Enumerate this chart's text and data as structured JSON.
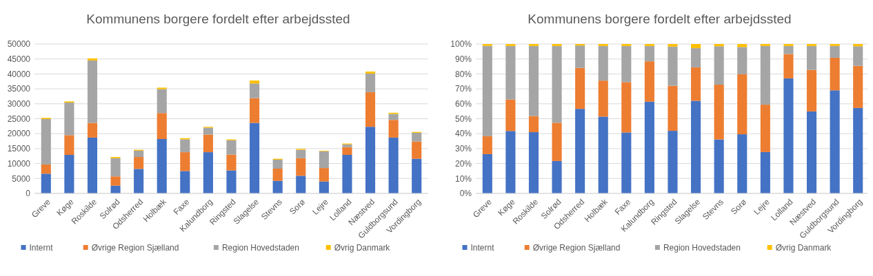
{
  "chart_data": [
    {
      "type": "bar",
      "stacked": true,
      "title": "Kommunens borgere fordelt efter arbejdssted",
      "categories": [
        "Greve",
        "Køge",
        "Roskilde",
        "Solrød",
        "Odsherred",
        "Holbæk",
        "Faxe",
        "Kalundborg",
        "Ringsted",
        "Slagelse",
        "Stevns",
        "Sorø",
        "Lejre",
        "Lolland",
        "Næstved",
        "Guldborgsund",
        "Vordingborg"
      ],
      "series": [
        {
          "name": "Internt",
          "color": "#4472c4",
          "values": [
            6600,
            12900,
            18700,
            2600,
            8200,
            18200,
            7500,
            13800,
            7700,
            23600,
            4200,
            5900,
            4000,
            12900,
            22300,
            18700,
            11600
          ]
        },
        {
          "name": "Øvrige Region Sjælland",
          "color": "#ed7d31",
          "values": [
            3100,
            6600,
            4900,
            3100,
            4000,
            8700,
            6300,
            5900,
            5300,
            8300,
            4100,
            5900,
            4500,
            2600,
            11600,
            5900,
            5800
          ]
        },
        {
          "name": "Region Hovedstaden",
          "color": "#a5a5a5",
          "values": [
            15200,
            10900,
            20900,
            6100,
            2100,
            8000,
            4300,
            2300,
            4800,
            4900,
            3000,
            2800,
            5600,
            900,
            6200,
            2000,
            2900
          ]
        },
        {
          "name": "Øvrig Danmark",
          "color": "#ffc000",
          "values": [
            400,
            400,
            700,
            400,
            300,
            500,
            400,
            300,
            300,
            1000,
            300,
            300,
            200,
            300,
            700,
            400,
            300
          ]
        }
      ],
      "ylim": [
        0,
        50000
      ],
      "yticks": [
        0,
        5000,
        10000,
        15000,
        20000,
        25000,
        30000,
        35000,
        40000,
        45000,
        50000
      ],
      "grid": "y",
      "legend": "bottom"
    },
    {
      "type": "bar",
      "stacked": true,
      "title": "Kommunens borgere fordelt efter arbejdssted",
      "categories": [
        "Greve",
        "Køge",
        "Roskilde",
        "Solrød",
        "Odsherred",
        "Holbæk",
        "Faxe",
        "Kalundborg",
        "Ringsted",
        "Slagelse",
        "Stevns",
        "Sorø",
        "Lejre",
        "Lolland",
        "Næstved",
        "Guldborgsund",
        "Vordingborg"
      ],
      "series": [
        {
          "name": "Internt",
          "color": "#4472c4",
          "values": [
            26.3,
            41.8,
            41.0,
            21.7,
            56.6,
            51.4,
            40.8,
            61.4,
            41.9,
            62.0,
            36.1,
            39.6,
            27.7,
            77.0,
            54.9,
            69.0,
            57.2
          ]
        },
        {
          "name": "Øvrige Region Sjælland",
          "color": "#ed7d31",
          "values": [
            12.0,
            21.1,
            10.8,
            25.6,
            27.4,
            24.1,
            33.7,
            27.0,
            30.2,
            22.4,
            36.7,
            40.2,
            31.7,
            16.3,
            27.8,
            21.8,
            28.2
          ]
        },
        {
          "name": "Region Hovedstaden",
          "color": "#a5a5a5",
          "values": [
            60.5,
            35.8,
            46.9,
            51.4,
            15.0,
            23.2,
            24.2,
            10.3,
            26.2,
            12.8,
            25.7,
            18.2,
            39.3,
            5.4,
            16.0,
            7.9,
            13.1
          ]
        },
        {
          "name": "Øvrig Danmark",
          "color": "#ffc000",
          "values": [
            1.2,
            1.3,
            1.3,
            1.3,
            1.0,
            1.3,
            1.3,
            1.3,
            1.7,
            2.8,
            1.5,
            2.0,
            1.3,
            1.3,
            1.3,
            1.3,
            1.5
          ]
        }
      ],
      "ylim": [
        0,
        100
      ],
      "yticks": [
        {
          "value": 0,
          "label": "0%"
        },
        {
          "value": 10,
          "label": "10%"
        },
        {
          "value": 20,
          "label": "20%"
        },
        {
          "value": 30,
          "label": "30%"
        },
        {
          "value": 40,
          "label": "40%"
        },
        {
          "value": 50,
          "label": "50%"
        },
        {
          "value": 60,
          "label": "60%"
        },
        {
          "value": 70,
          "label": "70%"
        },
        {
          "value": 80,
          "label": "80%"
        },
        {
          "value": 90,
          "label": "90%"
        },
        {
          "value": 100,
          "label": "100%"
        }
      ],
      "grid": "y",
      "legend": "bottom"
    }
  ]
}
